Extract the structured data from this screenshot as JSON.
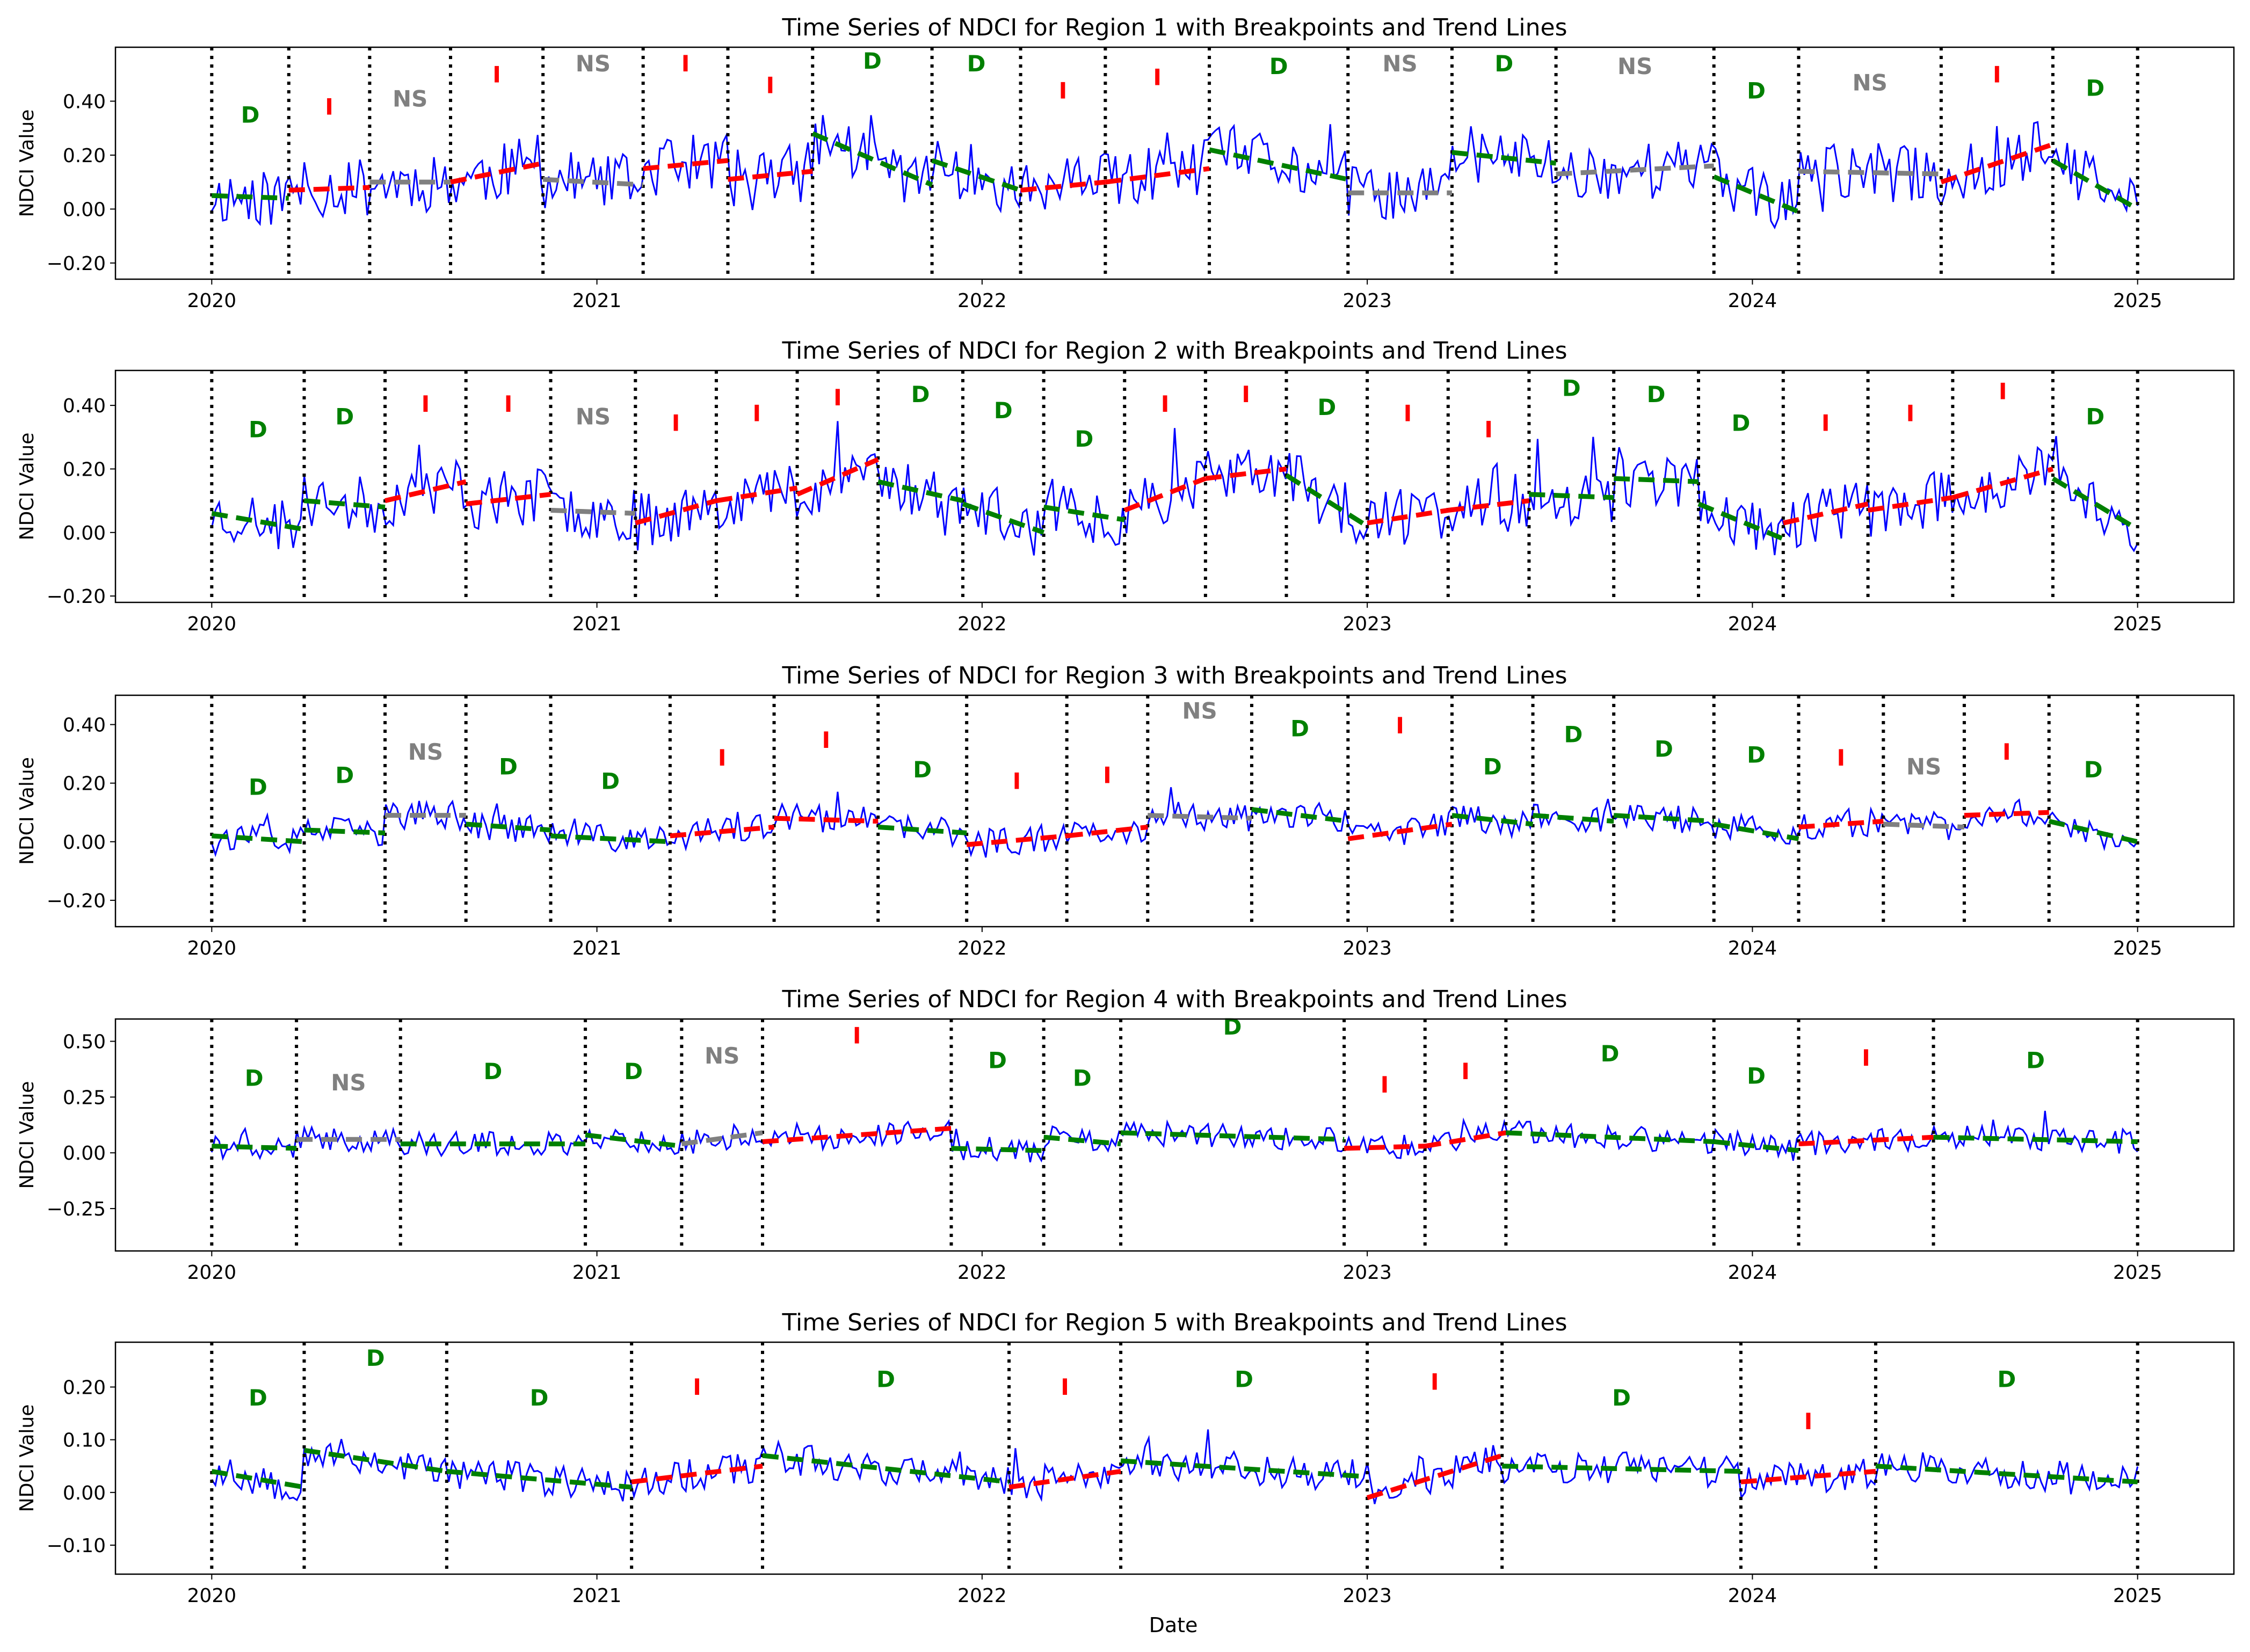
{
  "figure": {
    "xlabel": "Date",
    "ylabel": "NDCI Value",
    "x_tick_labels": [
      "2020",
      "2021",
      "2022",
      "2023",
      "2024",
      "2025"
    ]
  },
  "colors": {
    "observed": "#0000ff",
    "trend_D": "#008000",
    "trend_I": "#ff0000",
    "trend_NS": "#808080",
    "breakpoint": "#000000",
    "axes": "#000000"
  },
  "chart_data": [
    {
      "type": "line",
      "title": "Time Series of NDCI for Region 1 with Breakpoints and Trend Lines",
      "ylabel": "NDCI Value",
      "ylim": [
        -0.26,
        0.6
      ],
      "xlim": [
        2019.75,
        2025.25
      ],
      "yticks": [
        -0.2,
        0.0,
        0.2,
        0.4
      ],
      "ytick_labels": [
        "−0.20",
        "0.00",
        "0.20",
        "0.40"
      ],
      "series_note": "observed",
      "observed": {
        "base": 0.1,
        "amp": 0.11,
        "seed": 11
      },
      "segments": [
        {
          "start": 2020.0,
          "end": 2020.2,
          "label": "D",
          "y0": 0.05,
          "y1": 0.04,
          "label_y": 0.32
        },
        {
          "start": 2020.2,
          "end": 2020.41,
          "label": "I",
          "y0": 0.07,
          "y1": 0.08,
          "label_y": 0.35
        },
        {
          "start": 2020.41,
          "end": 2020.62,
          "label": "NS",
          "y0": 0.1,
          "y1": 0.1,
          "label_y": 0.38
        },
        {
          "start": 2020.62,
          "end": 2020.86,
          "label": "I",
          "y0": 0.1,
          "y1": 0.17,
          "label_y": 0.47
        },
        {
          "start": 2020.86,
          "end": 2021.12,
          "label": "NS",
          "y0": 0.11,
          "y1": 0.09,
          "label_y": 0.51
        },
        {
          "start": 2021.12,
          "end": 2021.34,
          "label": "I",
          "y0": 0.15,
          "y1": 0.18,
          "label_y": 0.51
        },
        {
          "start": 2021.34,
          "end": 2021.56,
          "label": "I",
          "y0": 0.11,
          "y1": 0.14,
          "label_y": 0.43
        },
        {
          "start": 2021.56,
          "end": 2021.87,
          "label": "D",
          "y0": 0.28,
          "y1": 0.09,
          "label_y": 0.52
        },
        {
          "start": 2021.87,
          "end": 2022.1,
          "label": "D",
          "y0": 0.18,
          "y1": 0.07,
          "label_y": 0.51
        },
        {
          "start": 2022.1,
          "end": 2022.32,
          "label": "I",
          "y0": 0.07,
          "y1": 0.1,
          "label_y": 0.41
        },
        {
          "start": 2022.32,
          "end": 2022.59,
          "label": "I",
          "y0": 0.1,
          "y1": 0.15,
          "label_y": 0.46
        },
        {
          "start": 2022.59,
          "end": 2022.95,
          "label": "D",
          "y0": 0.22,
          "y1": 0.11,
          "label_y": 0.5
        },
        {
          "start": 2022.95,
          "end": 2023.22,
          "label": "NS",
          "y0": 0.06,
          "y1": 0.06,
          "label_y": 0.51
        },
        {
          "start": 2023.22,
          "end": 2023.49,
          "label": "D",
          "y0": 0.21,
          "y1": 0.17,
          "label_y": 0.51
        },
        {
          "start": 2023.49,
          "end": 2023.9,
          "label": "NS",
          "y0": 0.13,
          "y1": 0.16,
          "label_y": 0.5
        },
        {
          "start": 2023.9,
          "end": 2024.12,
          "label": "D",
          "y0": 0.12,
          "y1": -0.01,
          "label_y": 0.41
        },
        {
          "start": 2024.12,
          "end": 2024.49,
          "label": "NS",
          "y0": 0.14,
          "y1": 0.13,
          "label_y": 0.44
        },
        {
          "start": 2024.49,
          "end": 2024.78,
          "label": "I",
          "y0": 0.1,
          "y1": 0.24,
          "label_y": 0.47
        },
        {
          "start": 2024.78,
          "end": 2025.0,
          "label": "D",
          "y0": 0.18,
          "y1": 0.0,
          "label_y": 0.42
        }
      ]
    },
    {
      "type": "line",
      "title": "Time Series of NDCI for Region 2 with Breakpoints and Trend Lines",
      "ylabel": "NDCI Value",
      "ylim": [
        -0.22,
        0.51
      ],
      "xlim": [
        2019.75,
        2025.25
      ],
      "yticks": [
        -0.2,
        0.0,
        0.2,
        0.4
      ],
      "ytick_labels": [
        "−0.20",
        "0.00",
        "0.20",
        "0.40"
      ],
      "observed": {
        "base": 0.09,
        "amp": 0.09,
        "seed": 23
      },
      "segments": [
        {
          "start": 2020.0,
          "end": 2020.24,
          "label": "D",
          "y0": 0.06,
          "y1": 0.01,
          "label_y": 0.3
        },
        {
          "start": 2020.24,
          "end": 2020.45,
          "label": "D",
          "y0": 0.1,
          "y1": 0.08,
          "label_y": 0.34
        },
        {
          "start": 2020.45,
          "end": 2020.66,
          "label": "I",
          "y0": 0.1,
          "y1": 0.16,
          "label_y": 0.38
        },
        {
          "start": 2020.66,
          "end": 2020.88,
          "label": "I",
          "y0": 0.09,
          "y1": 0.12,
          "label_y": 0.38
        },
        {
          "start": 2020.88,
          "end": 2021.1,
          "label": "NS",
          "y0": 0.07,
          "y1": 0.06,
          "label_y": 0.34
        },
        {
          "start": 2021.1,
          "end": 2021.31,
          "label": "I",
          "y0": 0.03,
          "y1": 0.1,
          "label_y": 0.32
        },
        {
          "start": 2021.31,
          "end": 2021.52,
          "label": "I",
          "y0": 0.1,
          "y1": 0.14,
          "label_y": 0.35
        },
        {
          "start": 2021.52,
          "end": 2021.73,
          "label": "I",
          "y0": 0.12,
          "y1": 0.23,
          "label_y": 0.4
        },
        {
          "start": 2021.73,
          "end": 2021.95,
          "label": "D",
          "y0": 0.16,
          "y1": 0.1,
          "label_y": 0.41
        },
        {
          "start": 2021.95,
          "end": 2022.16,
          "label": "D",
          "y0": 0.09,
          "y1": 0.0,
          "label_y": 0.36
        },
        {
          "start": 2022.16,
          "end": 2022.37,
          "label": "D",
          "y0": 0.08,
          "y1": 0.04,
          "label_y": 0.27
        },
        {
          "start": 2022.37,
          "end": 2022.58,
          "label": "I",
          "y0": 0.07,
          "y1": 0.17,
          "label_y": 0.38
        },
        {
          "start": 2022.58,
          "end": 2022.79,
          "label": "I",
          "y0": 0.17,
          "y1": 0.2,
          "label_y": 0.41
        },
        {
          "start": 2022.79,
          "end": 2023.0,
          "label": "D",
          "y0": 0.18,
          "y1": 0.02,
          "label_y": 0.37
        },
        {
          "start": 2023.0,
          "end": 2023.21,
          "label": "I",
          "y0": 0.03,
          "y1": 0.07,
          "label_y": 0.35
        },
        {
          "start": 2023.21,
          "end": 2023.42,
          "label": "I",
          "y0": 0.07,
          "y1": 0.1,
          "label_y": 0.3
        },
        {
          "start": 2023.42,
          "end": 2023.64,
          "label": "D",
          "y0": 0.12,
          "y1": 0.11,
          "label_y": 0.43
        },
        {
          "start": 2023.64,
          "end": 2023.86,
          "label": "D",
          "y0": 0.17,
          "y1": 0.16,
          "label_y": 0.41
        },
        {
          "start": 2023.86,
          "end": 2024.08,
          "label": "D",
          "y0": 0.09,
          "y1": -0.02,
          "label_y": 0.32
        },
        {
          "start": 2024.08,
          "end": 2024.3,
          "label": "I",
          "y0": 0.03,
          "y1": 0.09,
          "label_y": 0.32
        },
        {
          "start": 2024.3,
          "end": 2024.52,
          "label": "I",
          "y0": 0.07,
          "y1": 0.11,
          "label_y": 0.35
        },
        {
          "start": 2024.52,
          "end": 2024.78,
          "label": "I",
          "y0": 0.11,
          "y1": 0.2,
          "label_y": 0.42
        },
        {
          "start": 2024.78,
          "end": 2025.0,
          "label": "D",
          "y0": 0.17,
          "y1": 0.01,
          "label_y": 0.34
        }
      ]
    },
    {
      "type": "line",
      "title": "Time Series of NDCI for Region 3 with Breakpoints and Trend Lines",
      "ylabel": "NDCI Value",
      "ylim": [
        -0.29,
        0.5
      ],
      "xlim": [
        2019.75,
        2025.25
      ],
      "yticks": [
        -0.2,
        0.0,
        0.2,
        0.4
      ],
      "ytick_labels": [
        "−0.20",
        "0.00",
        "0.20",
        "0.40"
      ],
      "observed": {
        "base": 0.05,
        "amp": 0.05,
        "seed": 37
      },
      "segments": [
        {
          "start": 2020.0,
          "end": 2020.24,
          "label": "D",
          "y0": 0.02,
          "y1": 0.0,
          "label_y": 0.16
        },
        {
          "start": 2020.24,
          "end": 2020.45,
          "label": "D",
          "y0": 0.04,
          "y1": 0.03,
          "label_y": 0.2
        },
        {
          "start": 2020.45,
          "end": 2020.66,
          "label": "NS",
          "y0": 0.09,
          "y1": 0.09,
          "label_y": 0.28
        },
        {
          "start": 2020.66,
          "end": 2020.88,
          "label": "D",
          "y0": 0.06,
          "y1": 0.04,
          "label_y": 0.23
        },
        {
          "start": 2020.88,
          "end": 2021.19,
          "label": "D",
          "y0": 0.02,
          "y1": 0.0,
          "label_y": 0.18
        },
        {
          "start": 2021.19,
          "end": 2021.46,
          "label": "I",
          "y0": 0.02,
          "y1": 0.05,
          "label_y": 0.26
        },
        {
          "start": 2021.46,
          "end": 2021.73,
          "label": "I",
          "y0": 0.08,
          "y1": 0.07,
          "label_y": 0.32
        },
        {
          "start": 2021.73,
          "end": 2021.96,
          "label": "D",
          "y0": 0.05,
          "y1": 0.03,
          "label_y": 0.22
        },
        {
          "start": 2021.96,
          "end": 2022.22,
          "label": "I",
          "y0": -0.01,
          "y1": 0.02,
          "label_y": 0.18
        },
        {
          "start": 2022.22,
          "end": 2022.43,
          "label": "I",
          "y0": 0.02,
          "y1": 0.05,
          "label_y": 0.2
        },
        {
          "start": 2022.43,
          "end": 2022.7,
          "label": "NS",
          "y0": 0.09,
          "y1": 0.08,
          "label_y": 0.42
        },
        {
          "start": 2022.7,
          "end": 2022.95,
          "label": "D",
          "y0": 0.11,
          "y1": 0.07,
          "label_y": 0.36
        },
        {
          "start": 2022.95,
          "end": 2023.22,
          "label": "I",
          "y0": 0.01,
          "y1": 0.06,
          "label_y": 0.37
        },
        {
          "start": 2023.22,
          "end": 2023.43,
          "label": "D",
          "y0": 0.09,
          "y1": 0.06,
          "label_y": 0.23
        },
        {
          "start": 2023.43,
          "end": 2023.64,
          "label": "D",
          "y0": 0.09,
          "y1": 0.07,
          "label_y": 0.34
        },
        {
          "start": 2023.64,
          "end": 2023.9,
          "label": "D",
          "y0": 0.09,
          "y1": 0.07,
          "label_y": 0.29
        },
        {
          "start": 2023.9,
          "end": 2024.12,
          "label": "D",
          "y0": 0.06,
          "y1": 0.01,
          "label_y": 0.27
        },
        {
          "start": 2024.12,
          "end": 2024.34,
          "label": "I",
          "y0": 0.05,
          "y1": 0.07,
          "label_y": 0.26
        },
        {
          "start": 2024.34,
          "end": 2024.55,
          "label": "NS",
          "y0": 0.06,
          "y1": 0.05,
          "label_y": 0.23
        },
        {
          "start": 2024.55,
          "end": 2024.77,
          "label": "I",
          "y0": 0.09,
          "y1": 0.1,
          "label_y": 0.28
        },
        {
          "start": 2024.77,
          "end": 2025.0,
          "label": "D",
          "y0": 0.07,
          "y1": 0.0,
          "label_y": 0.22
        }
      ]
    },
    {
      "type": "line",
      "title": "Time Series of NDCI for Region 4 with Breakpoints and Trend Lines",
      "ylabel": "NDCI Value",
      "ylim": [
        -0.44,
        0.6
      ],
      "xlim": [
        2019.75,
        2025.25
      ],
      "yticks": [
        -0.25,
        0.0,
        0.25,
        0.5
      ],
      "ytick_labels": [
        "−0.25",
        "0.00",
        "0.25",
        "0.50"
      ],
      "observed": {
        "base": 0.05,
        "amp": 0.055,
        "seed": 41
      },
      "segments": [
        {
          "start": 2020.0,
          "end": 2020.22,
          "label": "D",
          "y0": 0.03,
          "y1": 0.02,
          "label_y": 0.3
        },
        {
          "start": 2020.22,
          "end": 2020.49,
          "label": "NS",
          "y0": 0.06,
          "y1": 0.06,
          "label_y": 0.28
        },
        {
          "start": 2020.49,
          "end": 2020.97,
          "label": "D",
          "y0": 0.04,
          "y1": 0.04,
          "label_y": 0.33
        },
        {
          "start": 2020.97,
          "end": 2021.22,
          "label": "D",
          "y0": 0.08,
          "y1": 0.03,
          "label_y": 0.33
        },
        {
          "start": 2021.22,
          "end": 2021.43,
          "label": "NS",
          "y0": 0.04,
          "y1": 0.09,
          "label_y": 0.4
        },
        {
          "start": 2021.43,
          "end": 2021.92,
          "label": "I",
          "y0": 0.05,
          "y1": 0.11,
          "label_y": 0.49
        },
        {
          "start": 2021.92,
          "end": 2022.16,
          "label": "D",
          "y0": 0.02,
          "y1": 0.01,
          "label_y": 0.38
        },
        {
          "start": 2022.16,
          "end": 2022.36,
          "label": "D",
          "y0": 0.07,
          "y1": 0.04,
          "label_y": 0.3
        },
        {
          "start": 2022.36,
          "end": 2022.94,
          "label": "D",
          "y0": 0.09,
          "y1": 0.06,
          "label_y": 0.53
        },
        {
          "start": 2022.94,
          "end": 2023.15,
          "label": "I",
          "y0": 0.02,
          "y1": 0.03,
          "label_y": 0.27
        },
        {
          "start": 2023.15,
          "end": 2023.36,
          "label": "I",
          "y0": 0.03,
          "y1": 0.09,
          "label_y": 0.33
        },
        {
          "start": 2023.36,
          "end": 2023.9,
          "label": "D",
          "y0": 0.09,
          "y1": 0.05,
          "label_y": 0.41
        },
        {
          "start": 2023.9,
          "end": 2024.12,
          "label": "D",
          "y0": 0.05,
          "y1": 0.01,
          "label_y": 0.31
        },
        {
          "start": 2024.12,
          "end": 2024.47,
          "label": "I",
          "y0": 0.04,
          "y1": 0.07,
          "label_y": 0.39
        },
        {
          "start": 2024.47,
          "end": 2025.0,
          "label": "D",
          "y0": 0.07,
          "y1": 0.05,
          "label_y": 0.38
        }
      ]
    },
    {
      "type": "line",
      "title": "Time Series of NDCI for Region 5 with Breakpoints and Trend Lines",
      "ylabel": "NDCI Value",
      "ylim": [
        -0.155,
        0.285
      ],
      "xlim": [
        2019.75,
        2025.25
      ],
      "yticks": [
        -0.1,
        0.0,
        0.1,
        0.2
      ],
      "ytick_labels": [
        "−0.10",
        "0.00",
        "0.10",
        "0.20"
      ],
      "observed": {
        "base": 0.04,
        "amp": 0.032,
        "seed": 53
      },
      "segments": [
        {
          "start": 2020.0,
          "end": 2020.24,
          "label": "D",
          "y0": 0.04,
          "y1": 0.01,
          "label_y": 0.165
        },
        {
          "start": 2020.24,
          "end": 2020.61,
          "label": "D",
          "y0": 0.08,
          "y1": 0.04,
          "label_y": 0.24
        },
        {
          "start": 2020.61,
          "end": 2021.09,
          "label": "D",
          "y0": 0.04,
          "y1": 0.01,
          "label_y": 0.165
        },
        {
          "start": 2021.09,
          "end": 2021.43,
          "label": "I",
          "y0": 0.02,
          "y1": 0.05,
          "label_y": 0.185
        },
        {
          "start": 2021.43,
          "end": 2022.07,
          "label": "D",
          "y0": 0.07,
          "y1": 0.02,
          "label_y": 0.2
        },
        {
          "start": 2022.07,
          "end": 2022.36,
          "label": "I",
          "y0": 0.01,
          "y1": 0.04,
          "label_y": 0.185
        },
        {
          "start": 2022.36,
          "end": 2023.0,
          "label": "D",
          "y0": 0.06,
          "y1": 0.03,
          "label_y": 0.2
        },
        {
          "start": 2023.0,
          "end": 2023.35,
          "label": "I",
          "y0": -0.01,
          "y1": 0.07,
          "label_y": 0.195
        },
        {
          "start": 2023.35,
          "end": 2023.97,
          "label": "D",
          "y0": 0.05,
          "y1": 0.04,
          "label_y": 0.165
        },
        {
          "start": 2023.97,
          "end": 2024.32,
          "label": "I",
          "y0": 0.02,
          "y1": 0.04,
          "label_y": 0.12
        },
        {
          "start": 2024.32,
          "end": 2025.0,
          "label": "D",
          "y0": 0.05,
          "y1": 0.02,
          "label_y": 0.2
        }
      ]
    }
  ]
}
